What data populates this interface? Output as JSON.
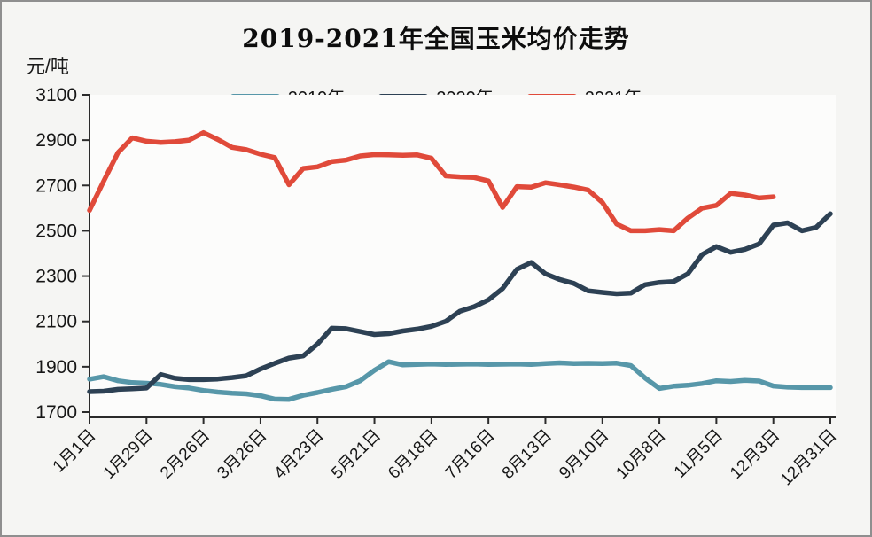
{
  "chart_data": {
    "type": "line",
    "title": "2019-2021年全国玉米均价走势",
    "ylabel": "元/吨",
    "xlabel": "",
    "grid": false,
    "legend_position": "top",
    "ylim": [
      1700,
      3100
    ],
    "y_ticks": [
      3100,
      2900,
      2700,
      2500,
      2300,
      2100,
      1900,
      1700
    ],
    "x_tick_labels": [
      "1月1日",
      "1月29日",
      "2月26日",
      "3月26日",
      "4月23日",
      "5月21日",
      "6月18日",
      "7月16日",
      "8月13日",
      "9月10日",
      "10月8日",
      "11月5日",
      "12月3日",
      "12月31日"
    ],
    "x_tick_step": 4,
    "x_unit": "week",
    "series": [
      {
        "name": "2019年",
        "color": "#5797a9",
        "values": [
          1845,
          1856,
          1838,
          1830,
          1827,
          1822,
          1812,
          1806,
          1795,
          1788,
          1783,
          1780,
          1772,
          1757,
          1756,
          1774,
          1786,
          1800,
          1812,
          1838,
          1884,
          1922,
          1908,
          1910,
          1912,
          1910,
          1911,
          1912,
          1910,
          1911,
          1912,
          1910,
          1914,
          1917,
          1914,
          1915,
          1914,
          1916,
          1905,
          1850,
          1804,
          1814,
          1818,
          1826,
          1838,
          1835,
          1840,
          1837,
          1815,
          1810,
          1808,
          1808,
          1808
        ]
      },
      {
        "name": "2020年",
        "color": "#2d4154",
        "values": [
          1790,
          1792,
          1800,
          1803,
          1806,
          1866,
          1849,
          1843,
          1843,
          1846,
          1852,
          1860,
          1890,
          1915,
          1938,
          1948,
          2000,
          2070,
          2068,
          2055,
          2042,
          2046,
          2058,
          2066,
          2078,
          2100,
          2145,
          2165,
          2195,
          2245,
          2330,
          2360,
          2310,
          2285,
          2268,
          2235,
          2228,
          2222,
          2225,
          2262,
          2272,
          2276,
          2310,
          2395,
          2430,
          2405,
          2418,
          2442,
          2525,
          2535,
          2500,
          2515,
          2575
        ]
      },
      {
        "name": "2021年",
        "color": "#e04a3a",
        "values": [
          2590,
          2720,
          2845,
          2910,
          2895,
          2890,
          2893,
          2900,
          2933,
          2903,
          2868,
          2858,
          2838,
          2823,
          2703,
          2775,
          2782,
          2805,
          2812,
          2830,
          2836,
          2835,
          2833,
          2835,
          2820,
          2742,
          2738,
          2735,
          2720,
          2603,
          2695,
          2692,
          2712,
          2703,
          2693,
          2680,
          2625,
          2530,
          2500,
          2500,
          2505,
          2500,
          2556,
          2600,
          2612,
          2665,
          2658,
          2645,
          2650
        ]
      }
    ]
  }
}
